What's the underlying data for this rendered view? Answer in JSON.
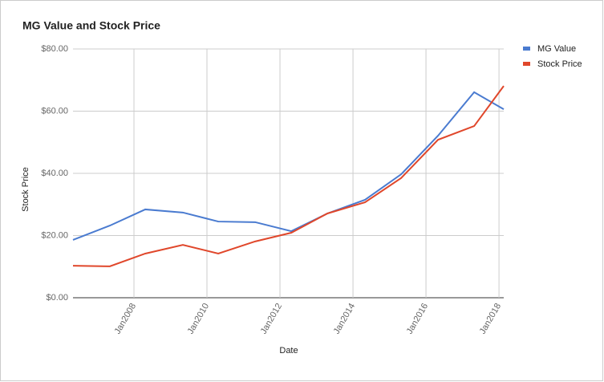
{
  "chart_data": {
    "type": "line",
    "title": "MG Value and Stock Price",
    "x_label": "Date",
    "y_label": "Stock Price",
    "x": [
      2006.33,
      2007.34,
      2008.31,
      2009.34,
      2010.31,
      2011.32,
      2012.31,
      2013.3,
      2014.33,
      2015.32,
      2016.33,
      2017.32,
      2018.13
    ],
    "series": [
      {
        "name": "MG Value",
        "color": "#4a7bd0",
        "values": [
          18.6,
          23.2,
          28.4,
          27.4,
          24.5,
          24.3,
          21.4,
          27.1,
          31.5,
          39.7,
          52.1,
          66.1,
          60.6
        ]
      },
      {
        "name": "Stock Price",
        "color": "#e0472b",
        "values": [
          10.3,
          10.1,
          14.2,
          17.0,
          14.2,
          18.1,
          20.9,
          27.1,
          30.7,
          38.5,
          50.8,
          55.2,
          68.1
        ]
      }
    ],
    "xlim": [
      2006.33,
      2018.13
    ],
    "xticks": [
      {
        "value": 2008,
        "label": "Jan2008"
      },
      {
        "value": 2010,
        "label": "Jan2010"
      },
      {
        "value": 2012,
        "label": "Jan2012"
      },
      {
        "value": 2014,
        "label": "Jan2014"
      },
      {
        "value": 2016,
        "label": "Jan2016"
      },
      {
        "value": 2018,
        "label": "Jan2018"
      }
    ],
    "ylim": [
      0,
      80
    ],
    "yticks": [
      {
        "value": 0,
        "label": "$0.00"
      },
      {
        "value": 20,
        "label": "$20.00"
      },
      {
        "value": 40,
        "label": "$40.00"
      },
      {
        "value": 60,
        "label": "$60.00"
      },
      {
        "value": 80,
        "label": "$80.00"
      }
    ],
    "grid": true,
    "legend": "right"
  }
}
